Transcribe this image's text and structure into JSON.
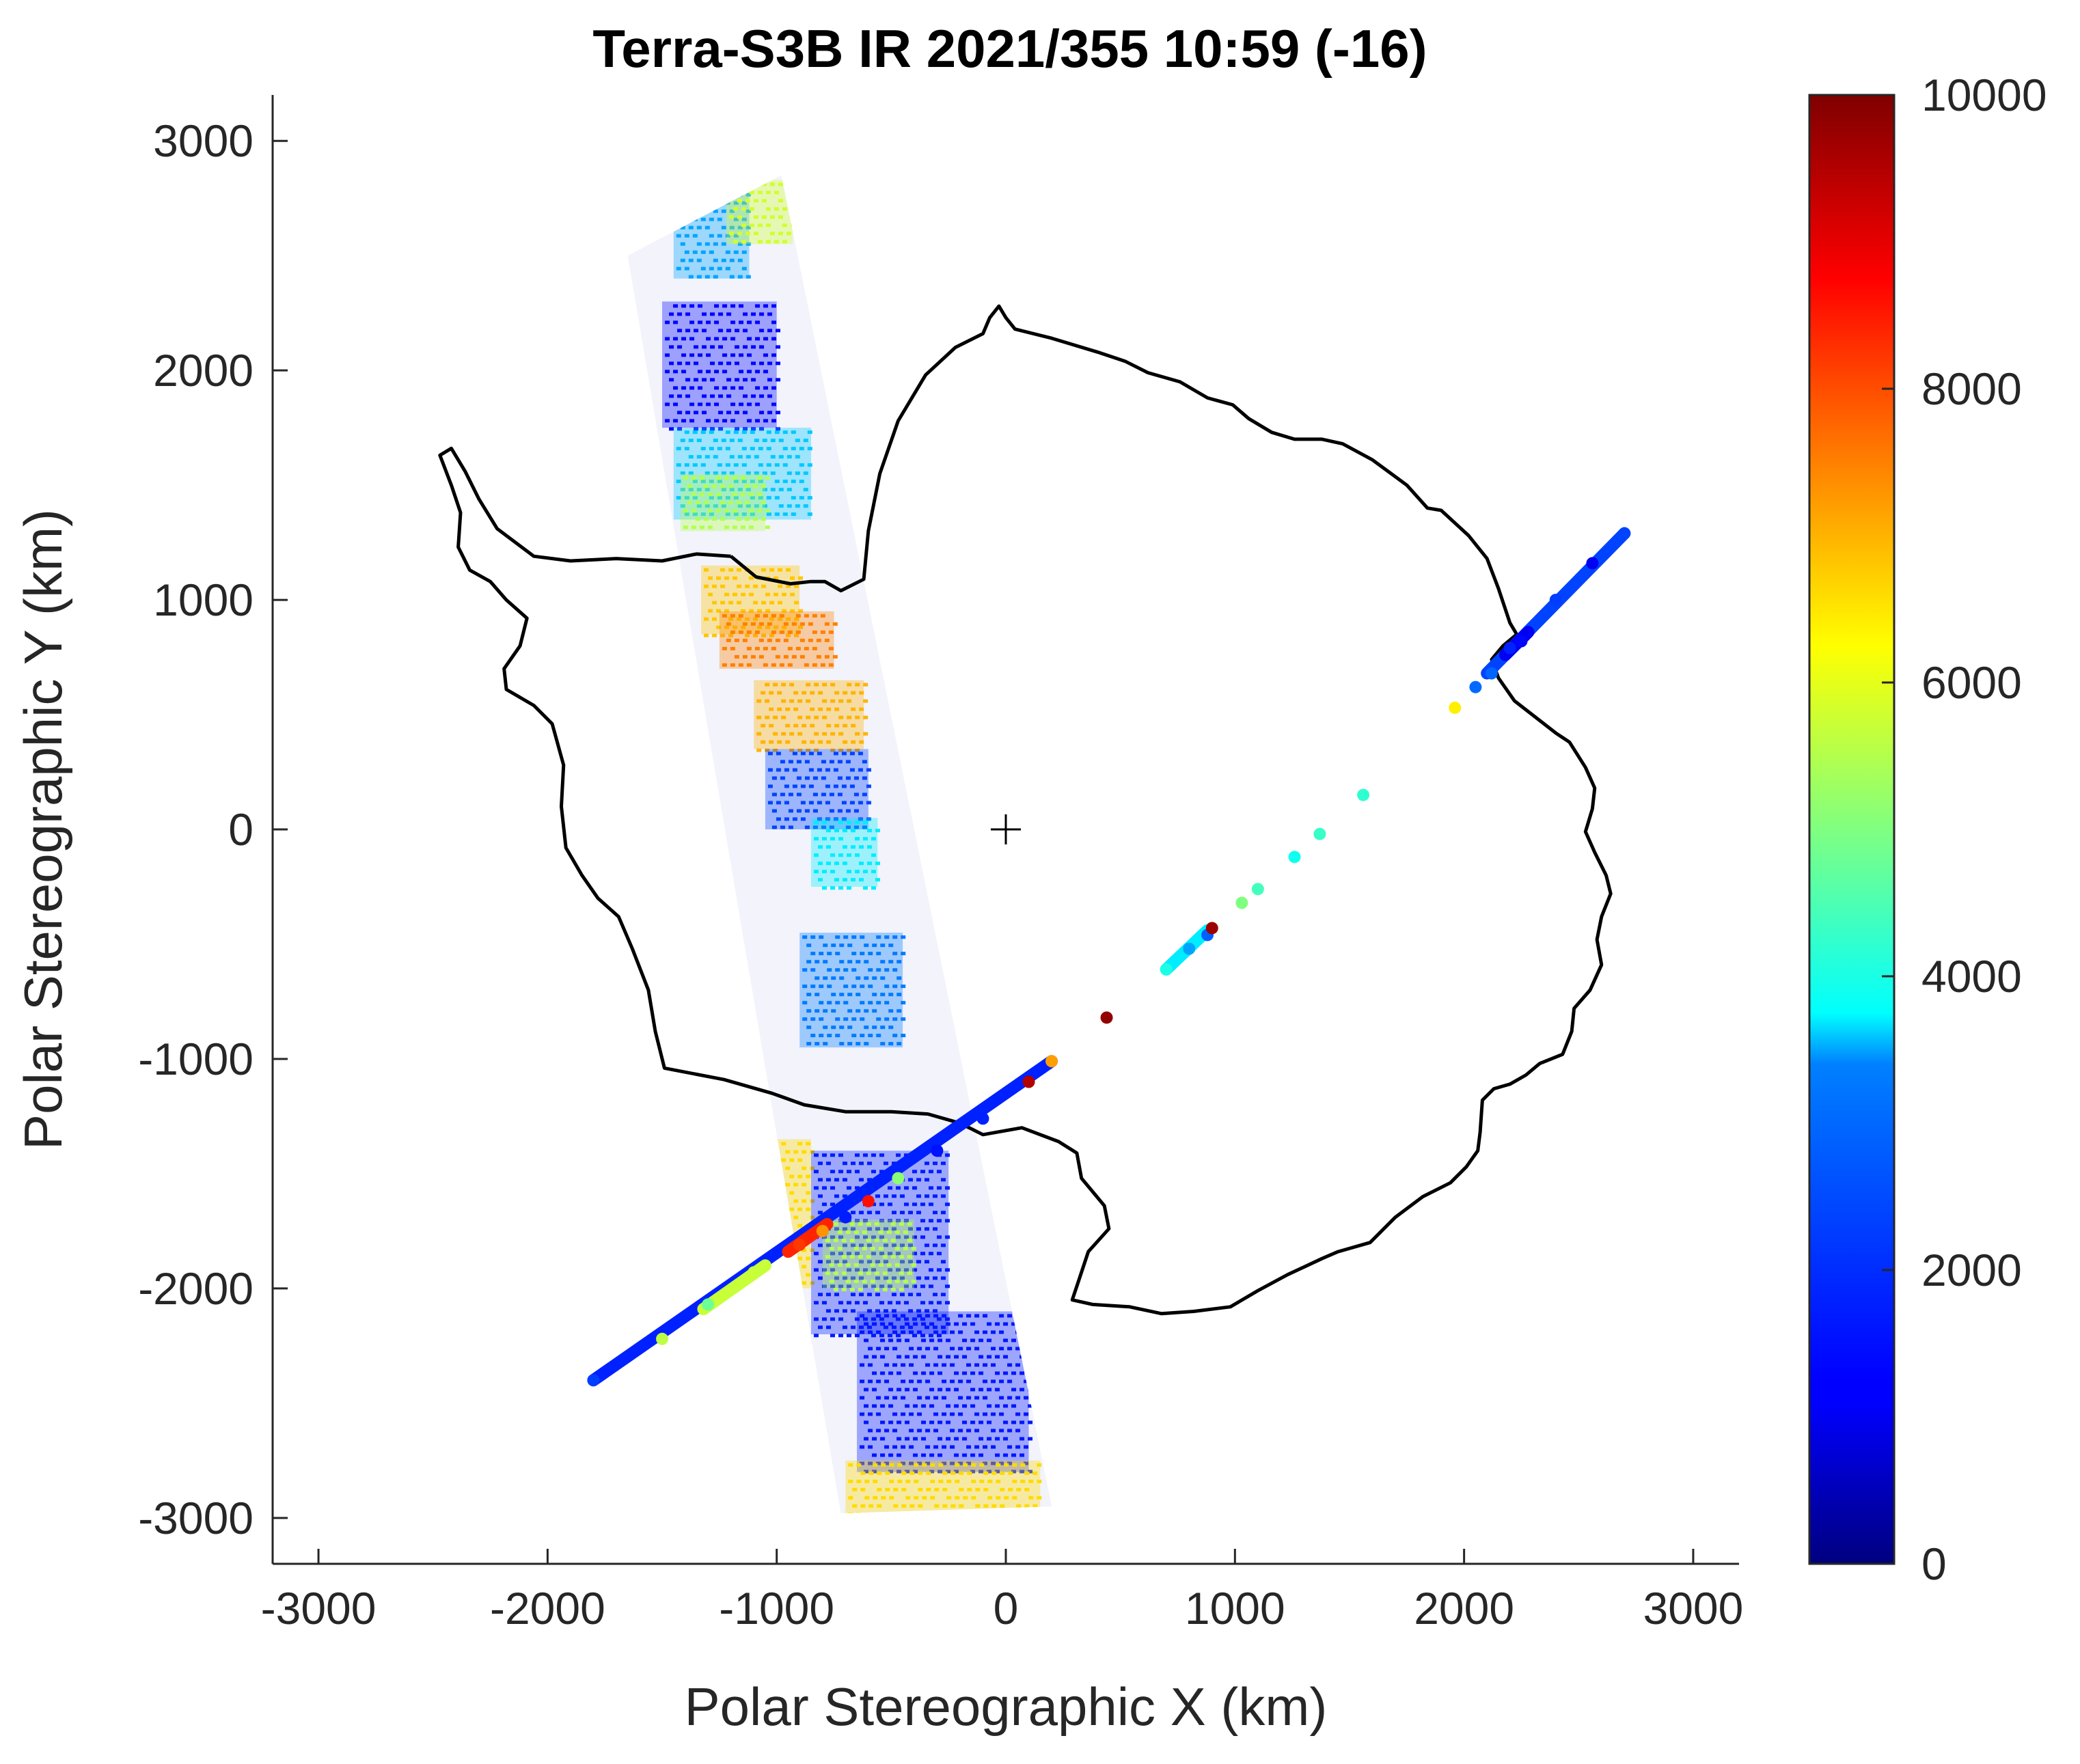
{
  "chart_data": {
    "type": "scatter",
    "title": "Terra-S3B IR 2021/355 10:59 (-16)",
    "xlabel": "Polar Stereographic X (km)",
    "ylabel": "Polar Stereographic Y (km)",
    "xlim": [
      -3200,
      3200
    ],
    "ylim": [
      -3200,
      3200
    ],
    "xticks": [
      -3000,
      -2000,
      -1000,
      0,
      1000,
      2000,
      3000
    ],
    "yticks": [
      -3000,
      -2000,
      -1000,
      0,
      1000,
      2000,
      3000
    ],
    "xtick_labels": [
      "-3000",
      "-2000",
      "-1000",
      "0",
      "1000",
      "2000",
      "3000"
    ],
    "ytick_labels": [
      "-3000",
      "-2000",
      "-1000",
      "0",
      "1000",
      "2000",
      "3000"
    ],
    "grid": false,
    "colormap": "jet",
    "colorbar": {
      "range": [
        0,
        10000
      ],
      "ticks": [
        0,
        2000,
        4000,
        6000,
        8000,
        10000
      ],
      "tick_labels": [
        "0",
        "2000",
        "4000",
        "6000",
        "8000",
        "10000"
      ]
    },
    "center_marker": {
      "x": 0,
      "y": 0,
      "symbol": "+"
    },
    "coastline": [
      [
        -1200,
        1190
      ],
      [
        -1090,
        1100
      ],
      [
        -940,
        1070
      ],
      [
        -850,
        1080
      ],
      [
        -790,
        1080
      ],
      [
        -720,
        1040
      ],
      [
        -620,
        1090
      ],
      [
        -600,
        1300
      ],
      [
        -550,
        1550
      ],
      [
        -470,
        1780
      ],
      [
        -350,
        1980
      ],
      [
        -220,
        2100
      ],
      [
        -100,
        2160
      ],
      [
        -70,
        2230
      ],
      [
        -30,
        2280
      ],
      [
        0,
        2230
      ],
      [
        40,
        2180
      ],
      [
        200,
        2140
      ],
      [
        400,
        2080
      ],
      [
        520,
        2040
      ],
      [
        620,
        1990
      ],
      [
        760,
        1950
      ],
      [
        880,
        1880
      ],
      [
        990,
        1850
      ],
      [
        1060,
        1790
      ],
      [
        1160,
        1730
      ],
      [
        1260,
        1700
      ],
      [
        1380,
        1700
      ],
      [
        1470,
        1680
      ],
      [
        1600,
        1610
      ],
      [
        1750,
        1500
      ],
      [
        1840,
        1400
      ],
      [
        1900,
        1390
      ],
      [
        2020,
        1280
      ],
      [
        2100,
        1180
      ],
      [
        2150,
        1050
      ],
      [
        2200,
        900
      ],
      [
        2230,
        850
      ],
      [
        2170,
        800
      ],
      [
        2120,
        740
      ],
      [
        2150,
        660
      ],
      [
        2220,
        560
      ],
      [
        2310,
        490
      ],
      [
        2400,
        420
      ],
      [
        2460,
        380
      ],
      [
        2530,
        270
      ],
      [
        2570,
        180
      ],
      [
        2560,
        90
      ],
      [
        2530,
        -10
      ],
      [
        2570,
        -100
      ],
      [
        2620,
        -200
      ],
      [
        2640,
        -280
      ],
      [
        2600,
        -380
      ],
      [
        2580,
        -480
      ],
      [
        2600,
        -590
      ],
      [
        2550,
        -700
      ],
      [
        2480,
        -780
      ],
      [
        2470,
        -880
      ],
      [
        2430,
        -980
      ],
      [
        2330,
        -1020
      ],
      [
        2270,
        -1070
      ],
      [
        2200,
        -1110
      ],
      [
        2130,
        -1130
      ],
      [
        2080,
        -1180
      ],
      [
        2070,
        -1320
      ],
      [
        2060,
        -1400
      ],
      [
        2010,
        -1470
      ],
      [
        1940,
        -1540
      ],
      [
        1820,
        -1600
      ],
      [
        1700,
        -1690
      ],
      [
        1590,
        -1800
      ],
      [
        1450,
        -1840
      ],
      [
        1380,
        -1870
      ],
      [
        1230,
        -1940
      ],
      [
        1100,
        -2010
      ],
      [
        980,
        -2080
      ],
      [
        820,
        -2100
      ],
      [
        680,
        -2110
      ],
      [
        540,
        -2080
      ],
      [
        380,
        -2070
      ],
      [
        290,
        -2050
      ],
      [
        320,
        -1960
      ],
      [
        360,
        -1840
      ],
      [
        450,
        -1740
      ],
      [
        430,
        -1640
      ],
      [
        330,
        -1520
      ],
      [
        310,
        -1410
      ],
      [
        230,
        -1360
      ],
      [
        70,
        -1300
      ],
      [
        -100,
        -1330
      ],
      [
        -200,
        -1280
      ],
      [
        -340,
        -1240
      ],
      [
        -500,
        -1230
      ],
      [
        -700,
        -1230
      ],
      [
        -880,
        -1200
      ],
      [
        -1020,
        -1150
      ],
      [
        -1230,
        -1090
      ],
      [
        -1490,
        -1040
      ],
      [
        -1530,
        -880
      ],
      [
        -1560,
        -700
      ],
      [
        -1630,
        -520
      ],
      [
        -1690,
        -380
      ],
      [
        -1780,
        -300
      ],
      [
        -1850,
        -200
      ],
      [
        -1920,
        -80
      ],
      [
        -1940,
        100
      ],
      [
        -1930,
        280
      ],
      [
        -1980,
        460
      ],
      [
        -2060,
        540
      ],
      [
        -2180,
        610
      ],
      [
        -2190,
        700
      ],
      [
        -2120,
        800
      ],
      [
        -2090,
        920
      ],
      [
        -2180,
        1000
      ],
      [
        -2250,
        1080
      ],
      [
        -2340,
        1130
      ],
      [
        -2390,
        1230
      ],
      [
        -2380,
        1380
      ],
      [
        -2420,
        1500
      ],
      [
        -2470,
        1630
      ],
      [
        -2420,
        1660
      ],
      [
        -2360,
        1560
      ],
      [
        -2300,
        1440
      ],
      [
        -2220,
        1310
      ],
      [
        -2060,
        1190
      ],
      [
        -1900,
        1170
      ],
      [
        -1700,
        1180
      ],
      [
        -1500,
        1170
      ],
      [
        -1350,
        1200
      ],
      [
        -1200,
        1190
      ]
    ],
    "swath": {
      "outline": [
        [
          -1650,
          2500
        ],
        [
          -980,
          2850
        ],
        [
          200,
          -2950
        ],
        [
          -720,
          -2980
        ]
      ],
      "regions": [
        {
          "x": [
            -1450,
            -1120
          ],
          "y": [
            2400,
            2820
          ],
          "value": 3500
        },
        {
          "x": [
            -1220,
            -930
          ],
          "y": [
            2550,
            2830
          ],
          "value": 5800
        },
        {
          "x": [
            -1500,
            -1000
          ],
          "y": [
            1750,
            2300
          ],
          "value": 1200
        },
        {
          "x": [
            -1450,
            -850
          ],
          "y": [
            1350,
            1750
          ],
          "value": 3600
        },
        {
          "x": [
            -1420,
            -1050
          ],
          "y": [
            1300,
            1550
          ],
          "value": 5500
        },
        {
          "x": [
            -1330,
            -900
          ],
          "y": [
            850,
            1150
          ],
          "value": 6800
        },
        {
          "x": [
            -1250,
            -750
          ],
          "y": [
            700,
            950
          ],
          "value": 7500
        },
        {
          "x": [
            -1100,
            -620
          ],
          "y": [
            350,
            650
          ],
          "value": 7000
        },
        {
          "x": [
            -1050,
            -600
          ],
          "y": [
            0,
            350
          ],
          "value": 2300
        },
        {
          "x": [
            -850,
            -560
          ],
          "y": [
            -250,
            50
          ],
          "value": 3700
        },
        {
          "x": [
            -900,
            -450
          ],
          "y": [
            -950,
            -450
          ],
          "value": 3300
        },
        {
          "x": [
            -1100,
            -850
          ],
          "y": [
            -2000,
            -1350
          ],
          "value": 6600
        },
        {
          "x": [
            -850,
            -250
          ],
          "y": [
            -2200,
            -1400
          ],
          "value": 1600
        },
        {
          "x": [
            -800,
            -400
          ],
          "y": [
            -2000,
            -1700
          ],
          "value": 5500
        },
        {
          "x": [
            -650,
            100
          ],
          "y": [
            -2800,
            -2100
          ],
          "value": 1500
        },
        {
          "x": [
            -700,
            150
          ],
          "y": [
            -2980,
            -2750
          ],
          "value": 6600
        }
      ]
    },
    "series": [
      {
        "points": [
          [
            -1800,
            -2400,
            2200
          ],
          [
            -1500,
            -2220,
            5600
          ],
          [
            -1300,
            -2070,
            4800
          ],
          [
            -1100,
            -1930,
            5700
          ],
          [
            -900,
            -1810,
            8200
          ],
          [
            -800,
            -1750,
            7300
          ],
          [
            -700,
            -1690,
            1600
          ],
          [
            -600,
            -1620,
            8600
          ],
          [
            -470,
            -1520,
            5100
          ],
          [
            -300,
            -1400,
            1400
          ],
          [
            -100,
            -1260,
            1700
          ],
          [
            100,
            -1100,
            9500
          ],
          [
            200,
            -1010,
            7200
          ],
          [
            440,
            -820,
            9800
          ],
          [
            700,
            -610,
            4000
          ],
          [
            800,
            -520,
            3500
          ],
          [
            880,
            -460,
            2800
          ],
          [
            900,
            -430,
            9700
          ],
          [
            1030,
            -320,
            5000
          ],
          [
            1100,
            -260,
            4400
          ],
          [
            1260,
            -120,
            3900
          ],
          [
            1370,
            -20,
            4300
          ],
          [
            1560,
            150,
            4200
          ],
          [
            1960,
            530,
            6400
          ],
          [
            2050,
            620,
            3000
          ],
          [
            2120,
            680,
            2900
          ],
          [
            2200,
            790,
            1700
          ],
          [
            2250,
            820,
            1200
          ],
          [
            2400,
            1000,
            2200
          ],
          [
            2560,
            1160,
            1000
          ],
          [
            2700,
            1290,
            2300
          ]
        ],
        "tracks": [
          [
            [
              -1800,
              -2400
            ],
            [
              200,
              -1010
            ],
            1700
          ],
          [
            [
              -1320,
              -2090
            ],
            [
              -1050,
              -1900
            ],
            5700
          ],
          [
            [
              -950,
              -1840
            ],
            [
              -780,
              -1720
            ],
            8400
          ],
          [
            [
              700,
              -610
            ],
            [
              880,
              -440
            ],
            3700
          ],
          [
            [
              2100,
              680
            ],
            [
              2700,
              1290
            ],
            2300
          ],
          [
            [
              2180,
              760
            ],
            [
              2280,
              860
            ],
            1000
          ]
        ]
      }
    ]
  }
}
